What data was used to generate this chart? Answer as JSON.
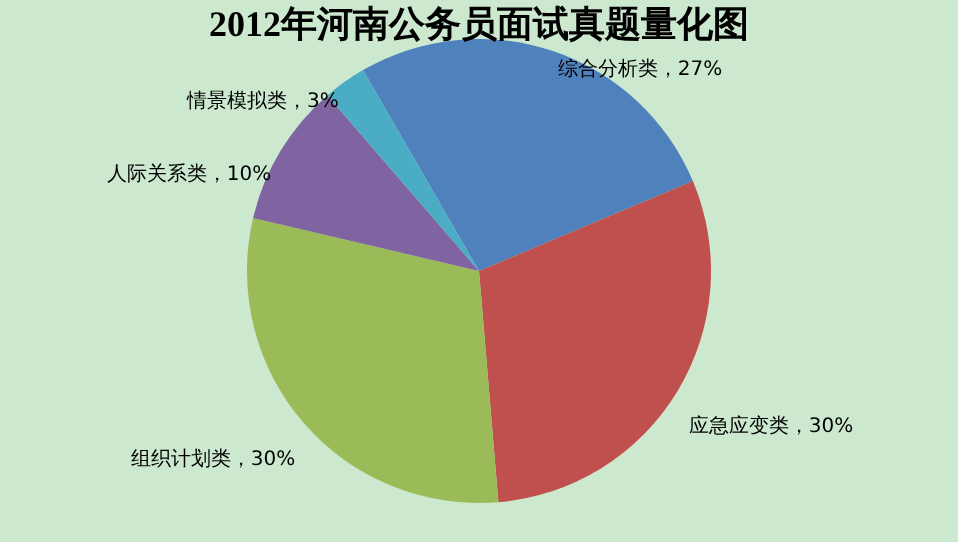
{
  "chart_data": {
    "type": "pie",
    "title": "2012年河南公务员面试真题量化图",
    "categories": [
      "综合分析类",
      "应急应变类",
      "组织计划类",
      "人际关系类",
      "情景模拟类"
    ],
    "values": [
      27,
      30,
      30,
      10,
      3
    ],
    "value_labels": [
      "27%",
      "30%",
      "30%",
      "10%",
      "3%"
    ],
    "colors": [
      "#4f81bd",
      "#c0504d",
      "#9bbb59",
      "#8064a2",
      "#4bacc6"
    ],
    "legend": false
  }
}
